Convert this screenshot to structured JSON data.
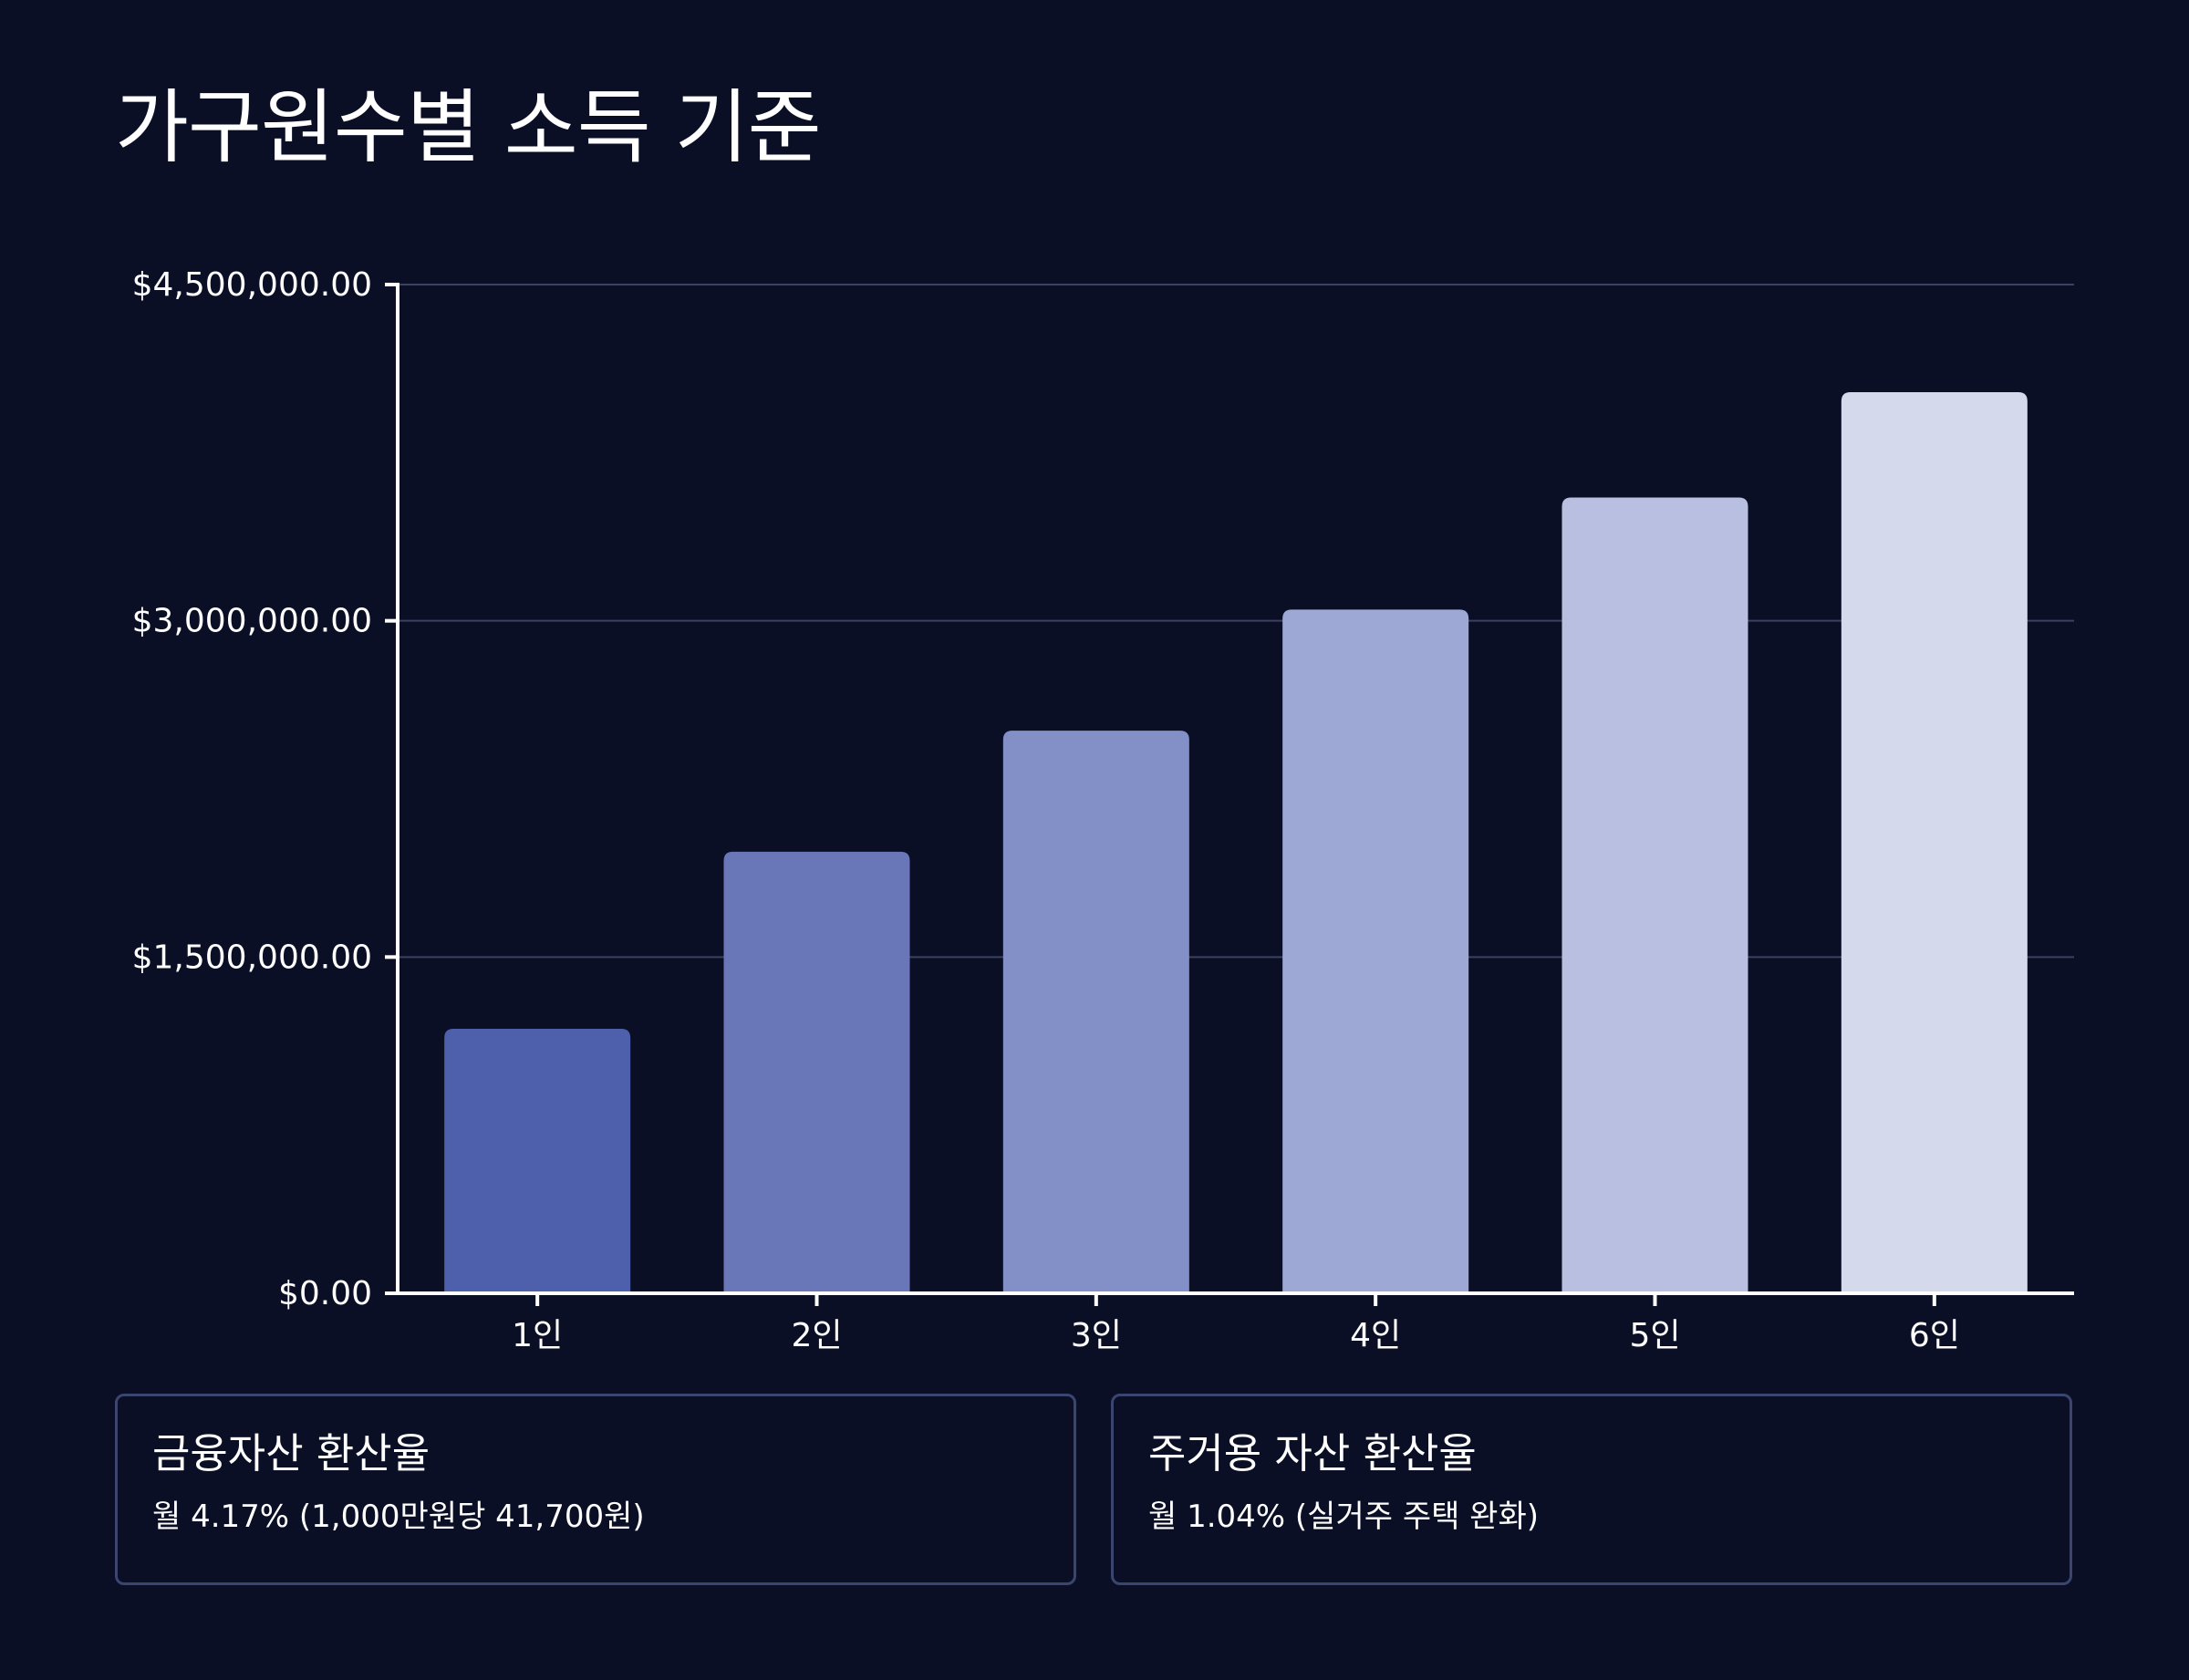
{
  "page": {
    "title": "가구원수별 소득 기준"
  },
  "colors": {
    "background": "#0a0f26",
    "grid": "#3b4260",
    "axis": "#ffffff",
    "card_border": "#3a4670",
    "bars": [
      "#4e60ab",
      "#6977b8",
      "#8390c7",
      "#9ea8d4",
      "#b8bfe0",
      "#d4d9eb"
    ]
  },
  "chart_data": {
    "type": "bar",
    "title": "",
    "xlabel": "",
    "ylabel": "",
    "categories": [
      "1인",
      "2인",
      "3인",
      "4인",
      "5인",
      "6인"
    ],
    "values": [
      1180000,
      1970000,
      2510000,
      3050000,
      3550000,
      4020000
    ],
    "ylim": [
      0,
      4500000
    ],
    "yticks": [
      0,
      1500000,
      3000000,
      4500000
    ],
    "ytick_labels": [
      "$0.00",
      "$1,500,000.00",
      "$3,000,000.00",
      "$4,500,000.00"
    ],
    "grid": true,
    "legend": "none"
  },
  "cards": [
    {
      "title": "금융자산 환산율",
      "value": "월 4.17% (1,000만원당 41,700원)"
    },
    {
      "title": "주거용 자산 환산율",
      "value": "월 1.04% (실거주 주택 완화)"
    }
  ]
}
